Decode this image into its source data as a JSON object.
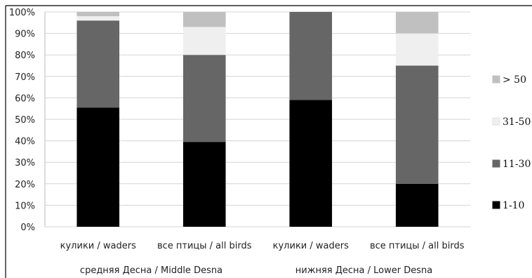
{
  "chart_data": {
    "type": "bar",
    "stacked": true,
    "percent": true,
    "categories": [
      "кулики / waders",
      "все птицы / all birds",
      "кулики / waders",
      "все птицы / all birds"
    ],
    "groups": [
      {
        "label": "средняя Десна / Middle Desna",
        "categories": [
          0,
          1
        ]
      },
      {
        "label": "нижняя Десна / Lower Desna",
        "categories": [
          2,
          3
        ]
      }
    ],
    "series": [
      {
        "name": "1-10",
        "color": "#000000",
        "values": [
          55.5,
          39.5,
          59,
          20
        ]
      },
      {
        "name": "11-30",
        "color": "#666666",
        "values": [
          40.5,
          40.5,
          41,
          55
        ]
      },
      {
        "name": "31-50",
        "color": "#efefef",
        "values": [
          2,
          13,
          0,
          15
        ]
      },
      {
        "name": "> 50",
        "color": "#c0c0c0",
        "values": [
          2,
          7,
          0,
          10
        ]
      }
    ],
    "legend_order": [
      "> 50",
      "31-50",
      "11-30",
      "1-10"
    ],
    "legend_labels": [
      "> 50",
      "31-50",
      "11-30",
      "1-10"
    ],
    "yticks": [
      "0%",
      "10%",
      "20%",
      "30%",
      "40%",
      "50%",
      "60%",
      "70%",
      "80%",
      "90%",
      "100%"
    ],
    "ylim": [
      0,
      100
    ],
    "grid": true,
    "legend_position": "right"
  }
}
